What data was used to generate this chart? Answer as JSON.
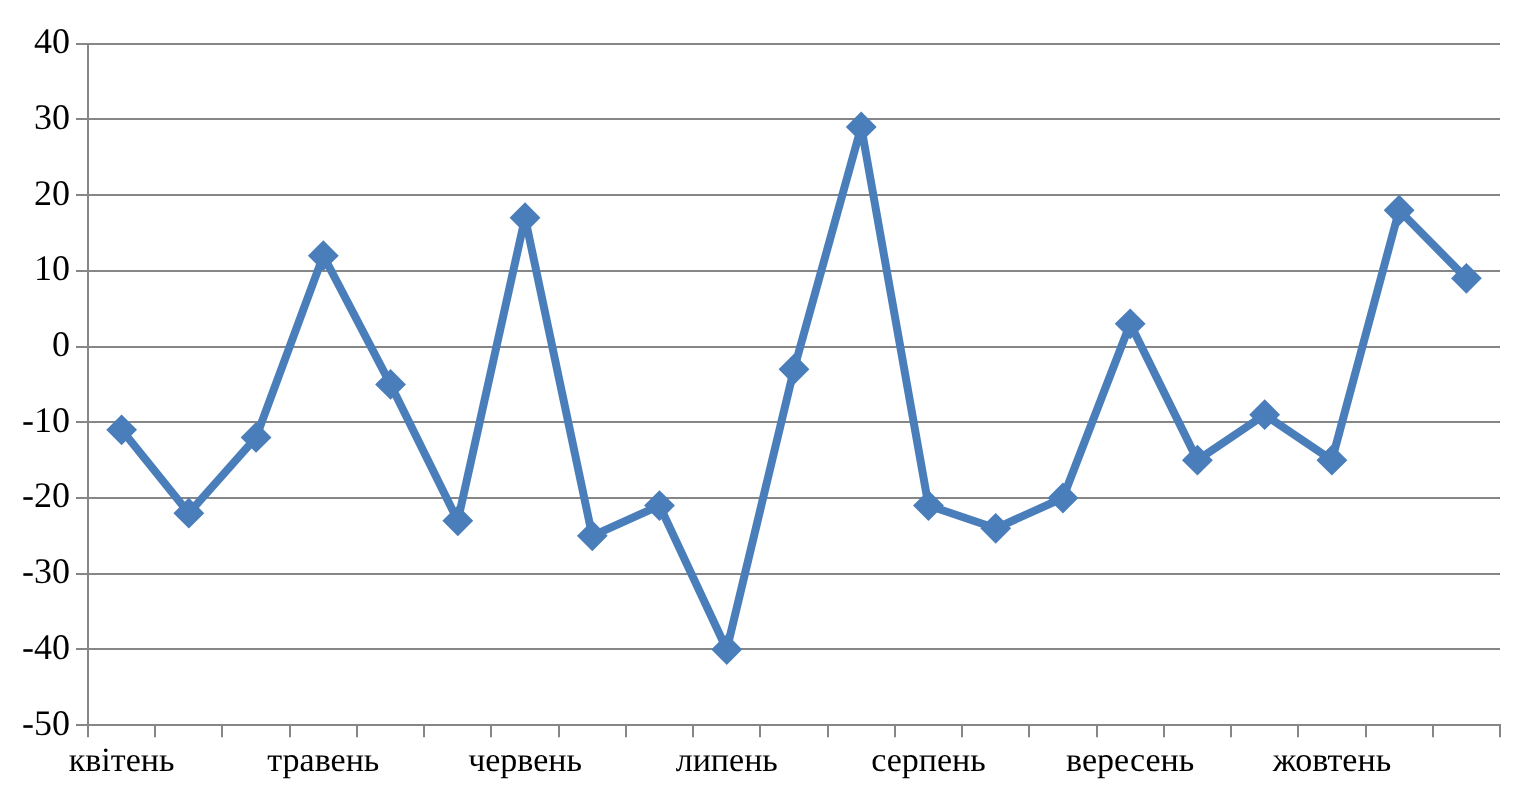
{
  "chart_data": {
    "type": "line",
    "categories": [
      "квітень",
      null,
      null,
      "травень",
      null,
      null,
      "червень",
      null,
      null,
      "липень",
      null,
      null,
      "серпень",
      null,
      null,
      "вересень",
      null,
      null,
      "жовтень",
      null,
      null
    ],
    "series": [
      {
        "color": "#4a7ebb",
        "values": [
          -11,
          -22,
          -12,
          12,
          -5,
          -23,
          17,
          -25,
          -21,
          -40,
          -3,
          29,
          -21,
          -24,
          -20,
          3,
          -15,
          -9,
          -15,
          18,
          9
        ]
      }
    ],
    "ylim": [
      -50,
      40
    ],
    "yticks": [
      -50,
      -40,
      -30,
      -20,
      -10,
      0,
      10,
      20,
      30,
      40
    ],
    "grid": "y",
    "legend": false,
    "marker": "diamond",
    "line_style": "solid"
  }
}
